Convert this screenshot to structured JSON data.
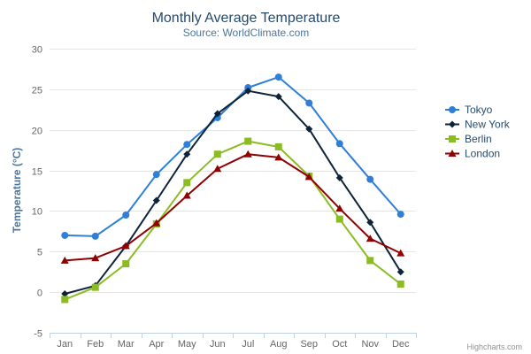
{
  "chart_data": {
    "type": "line",
    "title": "Monthly Average Temperature",
    "subtitle": "Source: WorldClimate.com",
    "xlabel": "",
    "ylabel": "Temperature (°C)",
    "categories": [
      "Jan",
      "Feb",
      "Mar",
      "Apr",
      "May",
      "Jun",
      "Jul",
      "Aug",
      "Sep",
      "Oct",
      "Nov",
      "Dec"
    ],
    "ylim": [
      -5,
      30
    ],
    "yticks": [
      -5,
      0,
      5,
      10,
      15,
      20,
      25,
      30
    ],
    "grid": "horizontal",
    "legend_position": "right",
    "series": [
      {
        "name": "Tokyo",
        "color": "#2f7ed8",
        "marker": "circle",
        "values": [
          7.0,
          6.9,
          9.5,
          14.5,
          18.2,
          21.5,
          25.2,
          26.5,
          23.3,
          18.3,
          13.9,
          9.6
        ]
      },
      {
        "name": "New York",
        "color": "#0d233a",
        "marker": "diamond",
        "values": [
          -0.2,
          0.8,
          5.7,
          11.3,
          17.0,
          22.0,
          24.8,
          24.1,
          20.1,
          14.1,
          8.6,
          2.5
        ]
      },
      {
        "name": "Berlin",
        "color": "#8bbc21",
        "marker": "square",
        "values": [
          -0.9,
          0.6,
          3.5,
          8.4,
          13.5,
          17.0,
          18.6,
          17.9,
          14.3,
          9.0,
          3.9,
          1.0
        ]
      },
      {
        "name": "London",
        "color": "#910000",
        "marker": "triangle",
        "values": [
          3.9,
          4.2,
          5.7,
          8.5,
          11.9,
          15.2,
          17.0,
          16.6,
          14.2,
          10.3,
          6.6,
          4.8
        ]
      }
    ]
  },
  "credits": "Highcharts.com"
}
